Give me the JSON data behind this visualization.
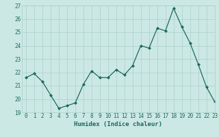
{
  "x": [
    0,
    1,
    2,
    3,
    4,
    5,
    6,
    7,
    8,
    9,
    10,
    11,
    12,
    13,
    14,
    15,
    16,
    17,
    18,
    19,
    20,
    21,
    22,
    23
  ],
  "y": [
    21.6,
    21.9,
    21.3,
    20.3,
    19.3,
    19.5,
    19.7,
    21.1,
    22.1,
    21.6,
    21.6,
    22.2,
    21.8,
    22.5,
    24.0,
    23.8,
    25.3,
    25.1,
    26.8,
    25.4,
    24.2,
    22.6,
    20.9,
    19.8
  ],
  "xlabel": "Humidex (Indice chaleur)",
  "ylim": [
    19,
    27
  ],
  "xlim": [
    -0.5,
    23
  ],
  "yticks": [
    19,
    20,
    21,
    22,
    23,
    24,
    25,
    26,
    27
  ],
  "xticks": [
    0,
    1,
    2,
    3,
    4,
    5,
    6,
    7,
    8,
    9,
    10,
    11,
    12,
    13,
    14,
    15,
    16,
    17,
    18,
    19,
    20,
    21,
    22,
    23
  ],
  "line_color": "#1a6b5a",
  "marker_color": "#1a6b5a",
  "bg_color": "#cce8e4",
  "grid_color": "#aacfca",
  "xlabel_color": "#1a6b5a",
  "tick_color": "#1a6b5a",
  "font_family": "monospace",
  "tick_fontsize": 5.5,
  "xlabel_fontsize": 6.5
}
